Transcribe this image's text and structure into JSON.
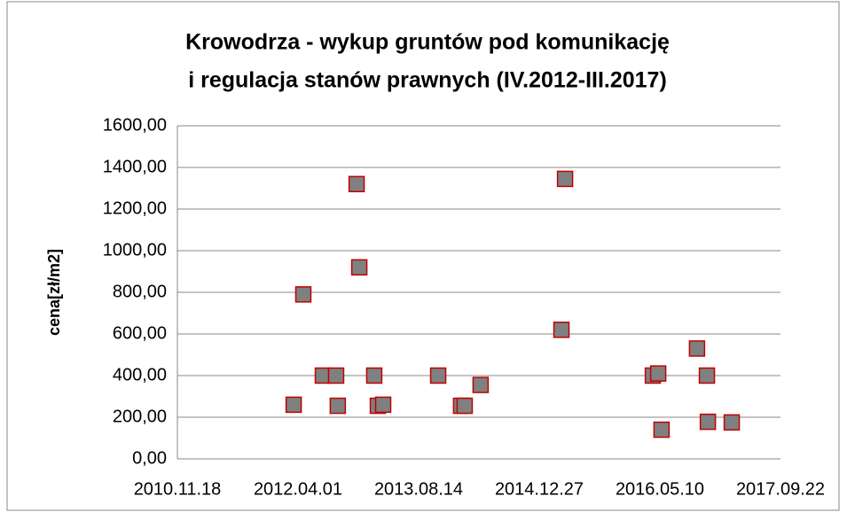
{
  "chart_data": {
    "type": "scatter",
    "title": [
      "Krowodrza - wykup gruntów pod komunikację",
      "i regulacja stanów prawnych (IV.2012-III.2017)"
    ],
    "y_label": "cena[zł/m2]",
    "x": [
      "2012.03.14",
      "2012.04.23",
      "2012.07.13",
      "2012.09.06",
      "2012.09.13",
      "2012.11.30",
      "2012.12.11",
      "2013.02.11",
      "2013.02.26",
      "2013.03.20",
      "2013.11.03",
      "2014.02.06",
      "2014.02.21",
      "2014.04.28",
      "2015.03.29",
      "2015.04.13",
      "2016.04.11",
      "2016.05.03",
      "2016.05.17",
      "2016.10.11",
      "2016.11.21",
      "2016.11.25",
      "2017.03.04"
    ],
    "values": [
      260,
      790,
      400,
      400,
      255,
      1320,
      920,
      400,
      255,
      260,
      400,
      255,
      255,
      355,
      620,
      1345,
      400,
      410,
      140,
      530,
      400,
      178,
      175
    ],
    "color": "#808080",
    "edge_color": "#c00000",
    "xlim": [
      "2010.11.18",
      "2017.09.22"
    ],
    "xticks": [
      "2010.11.18",
      "2012.04.01",
      "2013.08.14",
      "2014.12.27",
      "2016.05.10",
      "2017.09.22"
    ],
    "ylim": [
      0,
      1600
    ],
    "yticks": [
      {
        "value": 0,
        "label": "0,00"
      },
      {
        "value": 200,
        "label": "200,00"
      },
      {
        "value": 400,
        "label": "400,00"
      },
      {
        "value": 600,
        "label": "600,00"
      },
      {
        "value": 800,
        "label": "800,00"
      },
      {
        "value": 1000,
        "label": "1000,00"
      },
      {
        "value": 1200,
        "label": "1200,00"
      },
      {
        "value": 1400,
        "label": "1400,00"
      },
      {
        "value": 1600,
        "label": "1600,00"
      }
    ],
    "grid": true
  }
}
